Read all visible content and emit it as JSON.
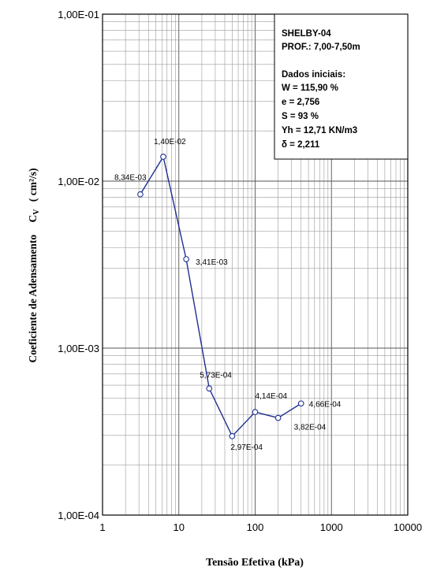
{
  "chart_data": {
    "type": "line",
    "xscale": "log",
    "yscale": "log",
    "xlim": [
      1,
      10000
    ],
    "ylim": [
      0.0001,
      0.1
    ],
    "grid": true,
    "xlabel": "Tensão Efetiva (kPa)",
    "ylabel_text": "Coeficiente de Adensamento",
    "ylabel_symbol": "C",
    "ylabel_sub": "V",
    "ylabel_unit": "( cm²/s)",
    "xticks": [
      {
        "value": 1,
        "label": "1"
      },
      {
        "value": 10,
        "label": "10"
      },
      {
        "value": 100,
        "label": "100"
      },
      {
        "value": 1000,
        "label": "1000"
      },
      {
        "value": 10000,
        "label": "10000"
      }
    ],
    "yticks": [
      {
        "value": 0.1,
        "label": "1,00E-01"
      },
      {
        "value": 0.01,
        "label": "1,00E-02"
      },
      {
        "value": 0.001,
        "label": "1,00E-03"
      },
      {
        "value": 0.0001,
        "label": "1,00E-04"
      }
    ],
    "series": [
      {
        "color": "#1f2f8f",
        "points": [
          {
            "x": 3.13,
            "y": 0.00834,
            "label": "8,34E-03"
          },
          {
            "x": 6.25,
            "y": 0.014,
            "label": "1,40E-02"
          },
          {
            "x": 12.5,
            "y": 0.00341,
            "label": "3,41E-03"
          },
          {
            "x": 25,
            "y": 0.000573,
            "label": "5,73E-04"
          },
          {
            "x": 50,
            "y": 0.000297,
            "label": "2,97E-04"
          },
          {
            "x": 100,
            "y": 0.000414,
            "label": "4,14E-04"
          },
          {
            "x": 200,
            "y": 0.000382,
            "label": "3,82E-04"
          },
          {
            "x": 400,
            "y": 0.000466,
            "label": "4,66E-04"
          }
        ]
      }
    ],
    "info_box": {
      "lines": [
        "SHELBY-04",
        "PROF.: 7,00-7,50m",
        "",
        "Dados iniciais:",
        "W = 115,90 %",
        "e = 2,756",
        "S = 93 %",
        "Yh = 12,71 KN/m3",
        "δ = 2,211"
      ]
    }
  }
}
